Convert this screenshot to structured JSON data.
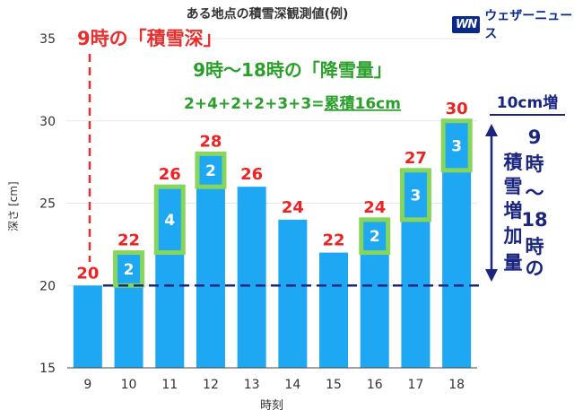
{
  "brand": {
    "mark": "WN",
    "name": "ウェザーニュース"
  },
  "chart_data": {
    "type": "bar",
    "title": "ある地点の積雪深観測値(例)",
    "xlabel": "時刻",
    "ylabel": "深さ [cm]",
    "ylim": [
      15,
      35
    ],
    "yticks": [
      15,
      20,
      25,
      30,
      35
    ],
    "categories": [
      "9",
      "10",
      "11",
      "12",
      "13",
      "14",
      "15",
      "16",
      "17",
      "18"
    ],
    "values": [
      20,
      22,
      26,
      28,
      26,
      24,
      22,
      24,
      27,
      30
    ],
    "value_labels": [
      "20",
      "22",
      "26",
      "28",
      "26",
      "24",
      "22",
      "24",
      "27",
      "30"
    ],
    "increments": [
      {
        "category": "10",
        "from": 20,
        "to": 22,
        "label": "2"
      },
      {
        "category": "11",
        "from": 22,
        "to": 26,
        "label": "4"
      },
      {
        "category": "12",
        "from": 26,
        "to": 28,
        "label": "2"
      },
      {
        "category": "16",
        "from": 22,
        "to": 24,
        "label": "2"
      },
      {
        "category": "17",
        "from": 24,
        "to": 27,
        "label": "3"
      },
      {
        "category": "18",
        "from": 27,
        "to": 30,
        "label": "3"
      }
    ],
    "baseline_value": 20,
    "annotations": {
      "depth_at_9": "9時の「積雪深」",
      "snowfall_title": "9時〜18時の「降雪量」",
      "snowfall_sum": "2+4+2+2+3+3=",
      "snowfall_total": "累積16cm",
      "increase_label": "10cm増",
      "increase_vertical": [
        "9",
        "時",
        "〜",
        "18",
        "時",
        "の",
        "積",
        "雪",
        "増",
        "加",
        "量"
      ]
    },
    "colors": {
      "bar": "#1ea7f2",
      "increment_box": "#86d65c",
      "value_label": "#ee2222",
      "snowfall_text": "#2aa02a",
      "annotation_navy": "#1a2580",
      "red_dashed": "#e53030",
      "grid": "#e6e6e6"
    },
    "grid": true
  }
}
